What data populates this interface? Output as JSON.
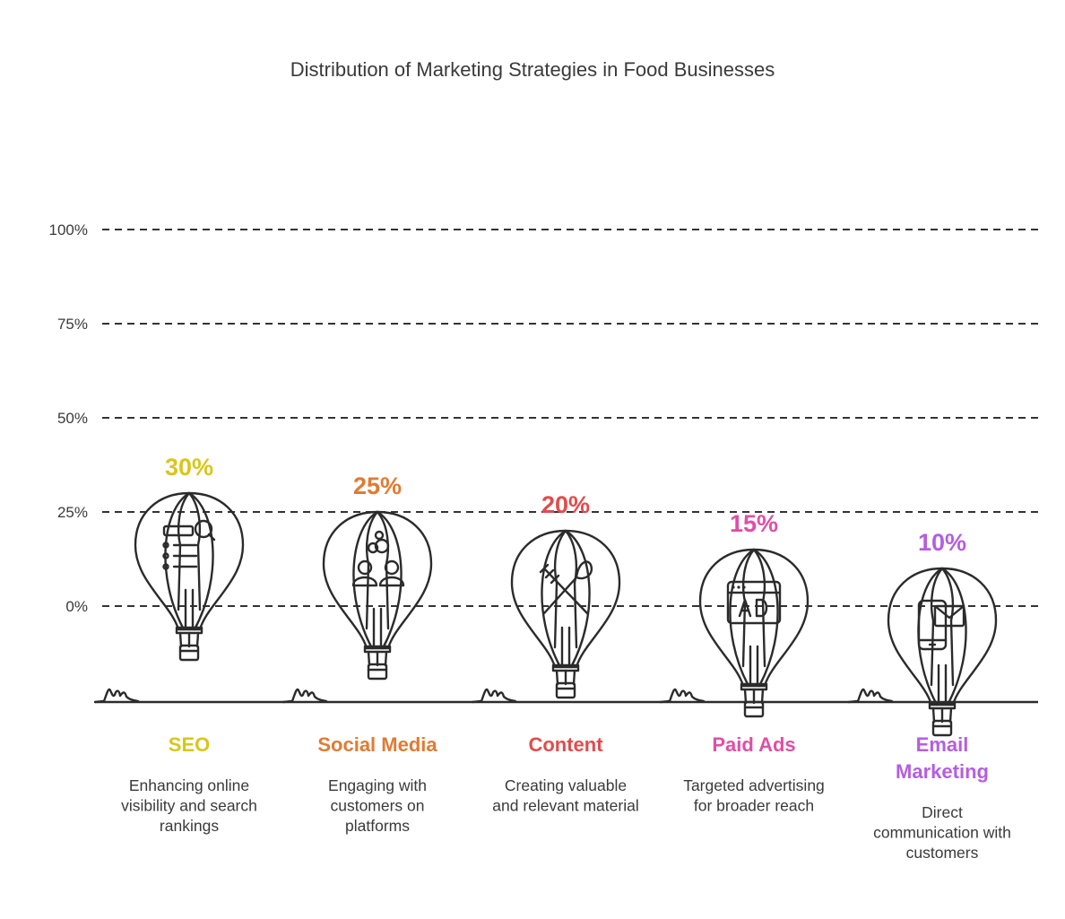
{
  "chart_data": {
    "type": "bar",
    "title": "Distribution of Marketing Strategies in Food Businesses",
    "y_ticks": [
      "100%",
      "75%",
      "50%",
      "25%",
      "0%"
    ],
    "ylim": [
      0,
      100
    ],
    "grid": true,
    "categories": [
      {
        "name": "SEO",
        "lines": [
          "SEO"
        ],
        "value": 30,
        "value_label": "30%",
        "color": "#d9c61a",
        "fill_light": "#fff36a",
        "fill_dark": "#f8d21f",
        "icon": "search-list-icon",
        "description": [
          "Enhancing online",
          "visibility and search",
          "rankings"
        ]
      },
      {
        "name": "Social Media",
        "lines": [
          "Social Media"
        ],
        "value": 25,
        "value_label": "25%",
        "color": "#e07b33",
        "fill_light": "#ffc474",
        "fill_dark": "#f7903e",
        "icon": "people-icon",
        "description": [
          "Engaging with",
          "customers on",
          "platforms"
        ]
      },
      {
        "name": "Content",
        "lines": [
          "Content"
        ],
        "value": 20,
        "value_label": "20%",
        "color": "#e24b4b",
        "fill_light": "#ffa097",
        "fill_dark": "#f25f5f",
        "icon": "fork-knife-icon",
        "description": [
          "Creating valuable",
          "and relevant material"
        ]
      },
      {
        "name": "Paid Ads",
        "lines": [
          "Paid Ads"
        ],
        "value": 15,
        "value_label": "15%",
        "color": "#df4fa5",
        "fill_light": "#ff9ee0",
        "fill_dark": "#e85cc3",
        "icon": "ad-icon",
        "description": [
          "Targeted advertising",
          "for broader reach"
        ]
      },
      {
        "name": "Email Marketing",
        "lines": [
          "Email",
          "Marketing"
        ],
        "value": 10,
        "value_label": "10%",
        "color": "#b45ee0",
        "fill_light": "#e5a8ff",
        "fill_dark": "#c779f0",
        "icon": "mobile-mail-icon",
        "description": [
          "Direct",
          "communication with",
          "customers"
        ]
      }
    ]
  }
}
